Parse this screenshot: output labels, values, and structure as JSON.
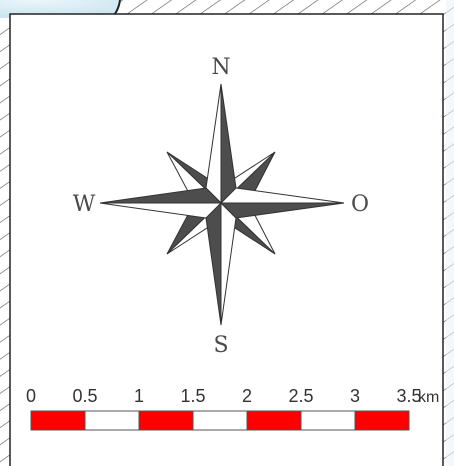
{
  "compass": {
    "north": "N",
    "south": "S",
    "west": "W",
    "east": "O"
  },
  "scale_bar": {
    "unit": "km",
    "ticks": [
      "0",
      "0.5",
      "1",
      "1.5",
      "2",
      "2.5",
      "3",
      "3.5"
    ],
    "segments": 7,
    "colors": {
      "filled": "#ff0000",
      "empty": "#ffffff",
      "outline": "#555555"
    }
  },
  "colors": {
    "rose_fill": "#4d4d4d",
    "hatch": "#555555",
    "water": "#d7ecf6"
  }
}
